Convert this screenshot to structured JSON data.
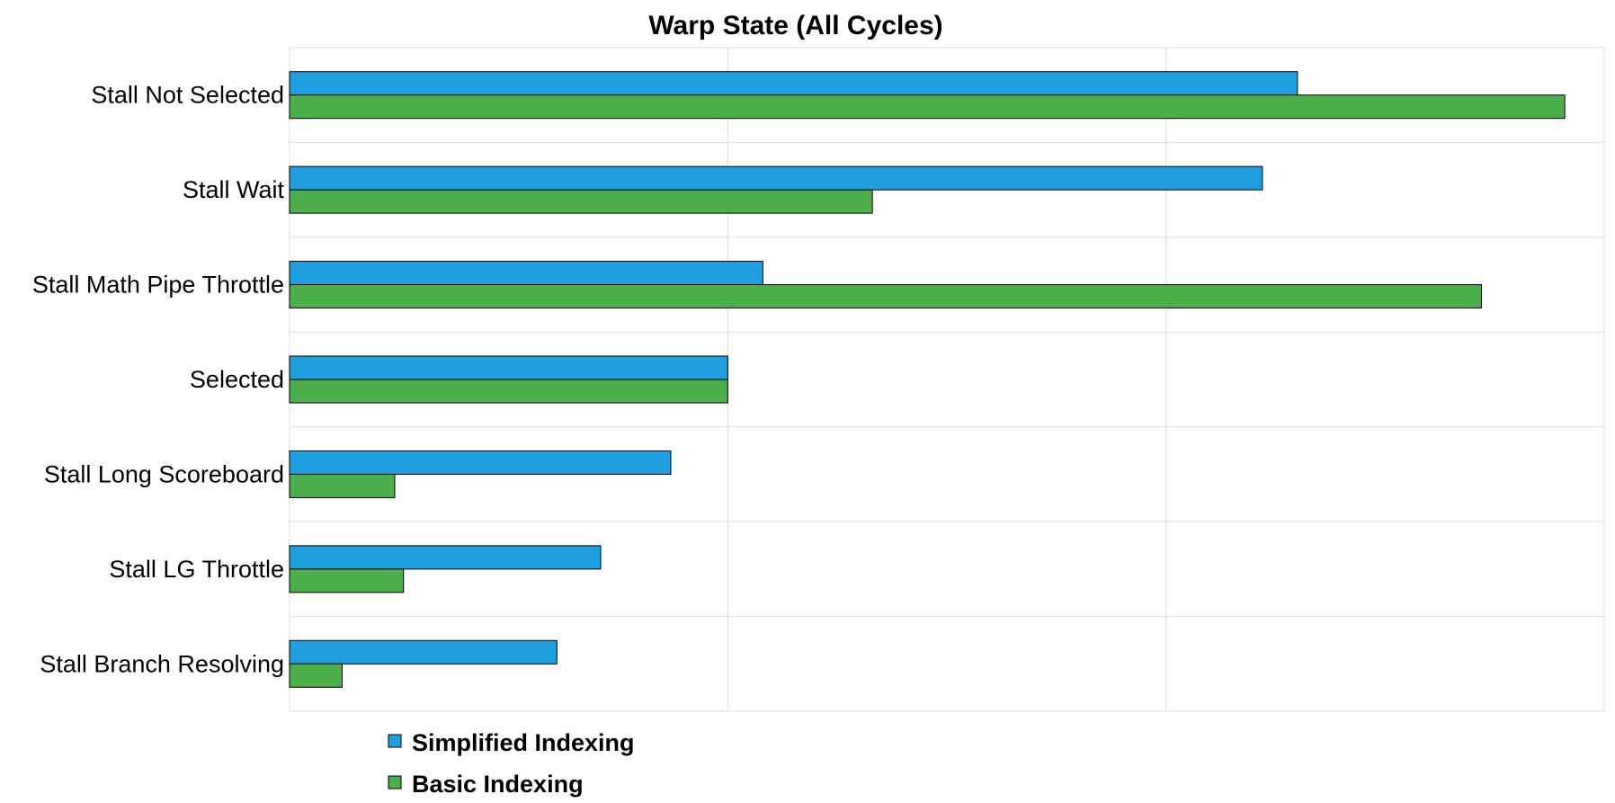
{
  "chart_data": {
    "type": "bar",
    "orientation": "horizontal",
    "title": "Warp State (All Cycles)",
    "xlabel": "",
    "ylabel": "",
    "xlim": [
      0,
      3
    ],
    "grid": true,
    "categories": [
      "Stall Not Selected",
      "Stall Wait",
      "Stall Math Pipe Throttle",
      "Selected",
      "Stall Long Scoreboard",
      "Stall LG Throttle",
      "Stall Branch Resolving"
    ],
    "series": [
      {
        "name": "Simplified Indexing",
        "color": "#1f9fe0",
        "values": [
          2.3,
          2.22,
          1.08,
          1.0,
          0.87,
          0.71,
          0.61
        ]
      },
      {
        "name": "Basic Indexing",
        "color": "#4caf4c",
        "values": [
          2.91,
          1.33,
          2.72,
          1.0,
          0.24,
          0.26,
          0.12
        ]
      }
    ],
    "legend": "bottom-left"
  }
}
